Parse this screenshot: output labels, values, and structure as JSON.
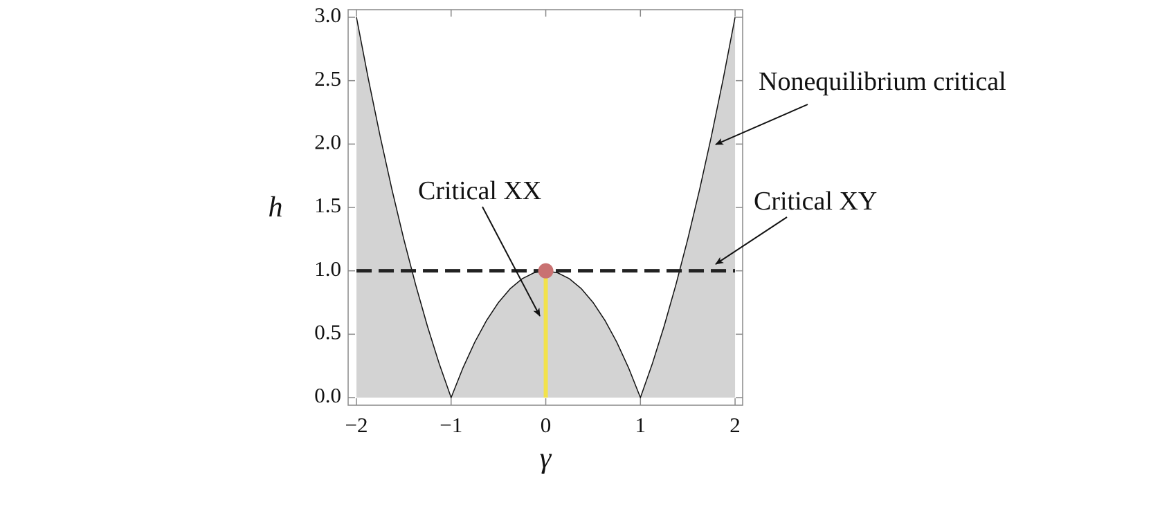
{
  "chart_data": {
    "type": "line",
    "xlabel": "γ",
    "ylabel": "h",
    "xlim": [
      -2.088,
      2.08
    ],
    "ylim": [
      -0.06,
      3.06
    ],
    "xticks": [
      {
        "value": -2,
        "label": "−2"
      },
      {
        "value": -1,
        "label": "−1"
      },
      0,
      1,
      2
    ],
    "yticks": [
      {
        "value": 0,
        "label": "0.0"
      },
      0.5,
      {
        "value": 1,
        "label": "1.0"
      },
      1.5,
      {
        "value": 2,
        "label": "2.0"
      },
      2.5,
      {
        "value": 3,
        "label": "3.0"
      }
    ],
    "fill_color": "#d3d3d3",
    "series": [
      {
        "color": "#111111",
        "width": 1.5,
        "dashed": false,
        "fill_below": true,
        "x": [
          -2,
          -1.875,
          -1.75,
          -1.625,
          -1.5,
          -1.375,
          -1.25,
          -1.125,
          -1,
          -0.875,
          -0.75,
          -0.625,
          -0.5,
          -0.375,
          -0.25,
          -0.125,
          0,
          0.125,
          0.25,
          0.375,
          0.5,
          0.625,
          0.75,
          0.875,
          1,
          1.125,
          1.25,
          1.375,
          1.5,
          1.625,
          1.75,
          1.875,
          2
        ],
        "values": [
          3,
          2.515625,
          2.0625,
          1.640625,
          1.25,
          0.890625,
          0.5625,
          0.265625,
          0,
          0.234375,
          0.4375,
          0.609375,
          0.75,
          0.859375,
          0.9375,
          0.984375,
          1,
          0.984375,
          0.9375,
          0.859375,
          0.75,
          0.609375,
          0.4375,
          0.234375,
          0,
          0.265625,
          0.5625,
          0.890625,
          1.25,
          1.640625,
          2.0625,
          2.515625,
          3
        ]
      },
      {
        "color": "#222222",
        "width": 5,
        "dashed": true,
        "fill_below": false,
        "x": [
          -2,
          2
        ],
        "values": [
          1,
          1
        ]
      },
      {
        "color": "#f2e24a",
        "width": 6,
        "dashed": false,
        "fill_below": false,
        "x": [
          0,
          0
        ],
        "values": [
          0,
          1
        ]
      }
    ],
    "points": [
      {
        "x": 0,
        "y": 1,
        "color": "#c97272"
      }
    ],
    "annotations": [
      "Nonequilibrium critical",
      "Critical XY",
      "Critical XX"
    ]
  }
}
